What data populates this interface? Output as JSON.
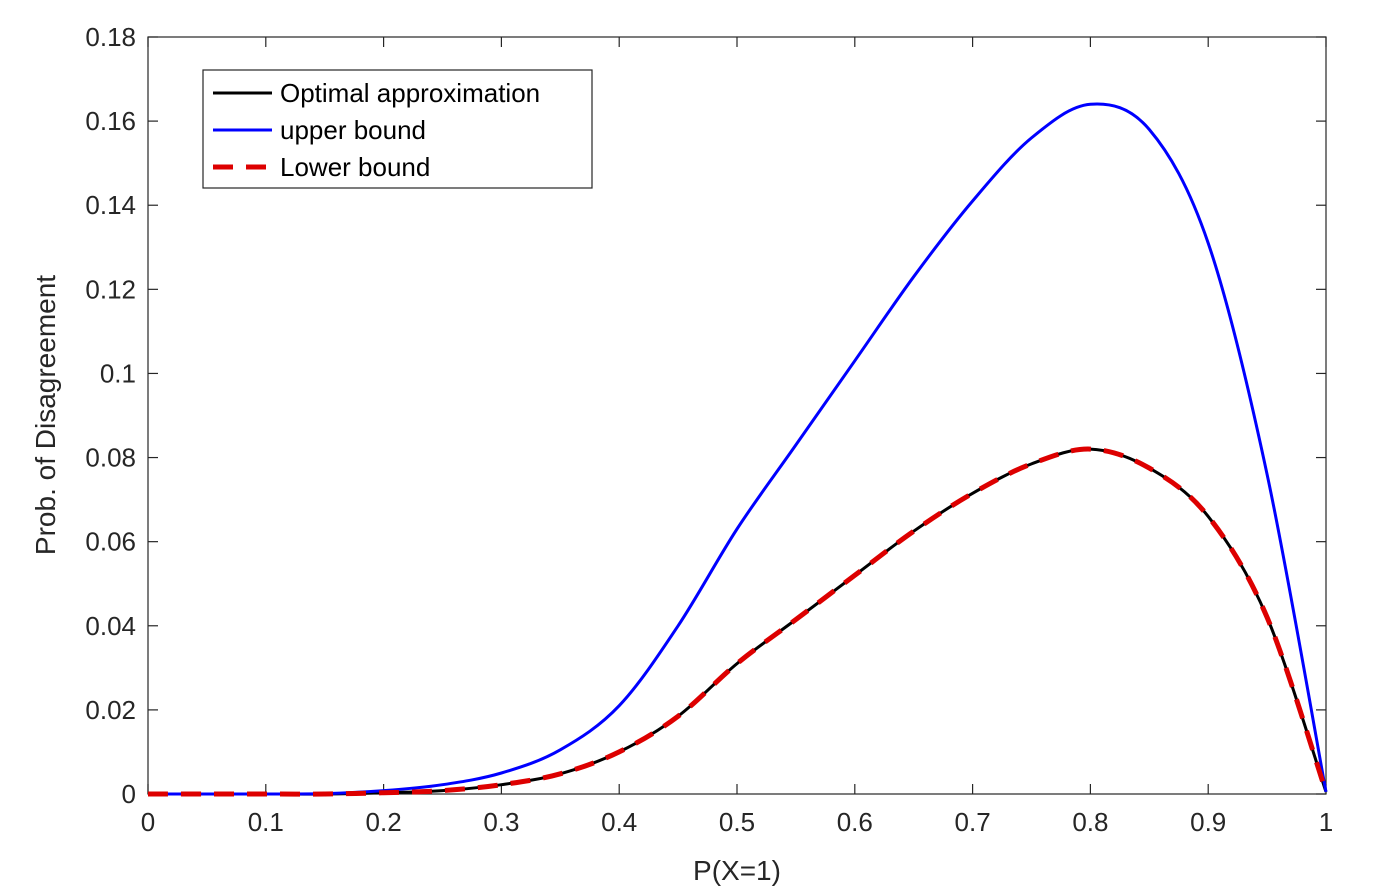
{
  "chart_data": {
    "type": "line",
    "title": "",
    "xlabel": "P(X=1)",
    "ylabel": "Prob. of Disagreement",
    "xlim": [
      0,
      1
    ],
    "ylim": [
      0,
      0.18
    ],
    "xticks": [
      "0",
      "0.1",
      "0.2",
      "0.3",
      "0.4",
      "0.5",
      "0.6",
      "0.7",
      "0.8",
      "0.9",
      "1"
    ],
    "yticks": [
      "0",
      "0.02",
      "0.04",
      "0.06",
      "0.08",
      "0.1",
      "0.12",
      "0.14",
      "0.16",
      "0.18"
    ],
    "grid": false,
    "legend_position": "top-left",
    "x": [
      0,
      0.05,
      0.1,
      0.15,
      0.2,
      0.25,
      0.3,
      0.35,
      0.4,
      0.45,
      0.5,
      0.55,
      0.6,
      0.65,
      0.7,
      0.75,
      0.8,
      0.85,
      0.9,
      0.95,
      1.0
    ],
    "series": [
      {
        "name": "Optimal approximation",
        "color": "#000000",
        "style": "solid",
        "values": [
          0,
          0,
          0,
          0,
          0.0003,
          0.0008,
          0.0022,
          0.0048,
          0.01,
          0.0185,
          0.031,
          0.0415,
          0.052,
          0.0625,
          0.0715,
          0.0785,
          0.082,
          0.0775,
          0.066,
          0.042,
          0.0005
        ]
      },
      {
        "name": "upper bound",
        "color": "#0000ff",
        "style": "solid",
        "values": [
          0,
          0,
          0,
          0.0001,
          0.0008,
          0.0022,
          0.005,
          0.0105,
          0.021,
          0.04,
          0.063,
          0.083,
          0.103,
          0.123,
          0.141,
          0.156,
          0.164,
          0.158,
          0.131,
          0.076,
          0.0005
        ]
      },
      {
        "name": "Lower bound",
        "color": "#dd0000",
        "style": "dashed",
        "values": [
          0,
          0,
          0,
          0,
          0.0003,
          0.0008,
          0.0022,
          0.0048,
          0.01,
          0.0185,
          0.031,
          0.0415,
          0.052,
          0.0625,
          0.0715,
          0.0785,
          0.082,
          0.0775,
          0.066,
          0.042,
          0.0005
        ]
      }
    ]
  }
}
